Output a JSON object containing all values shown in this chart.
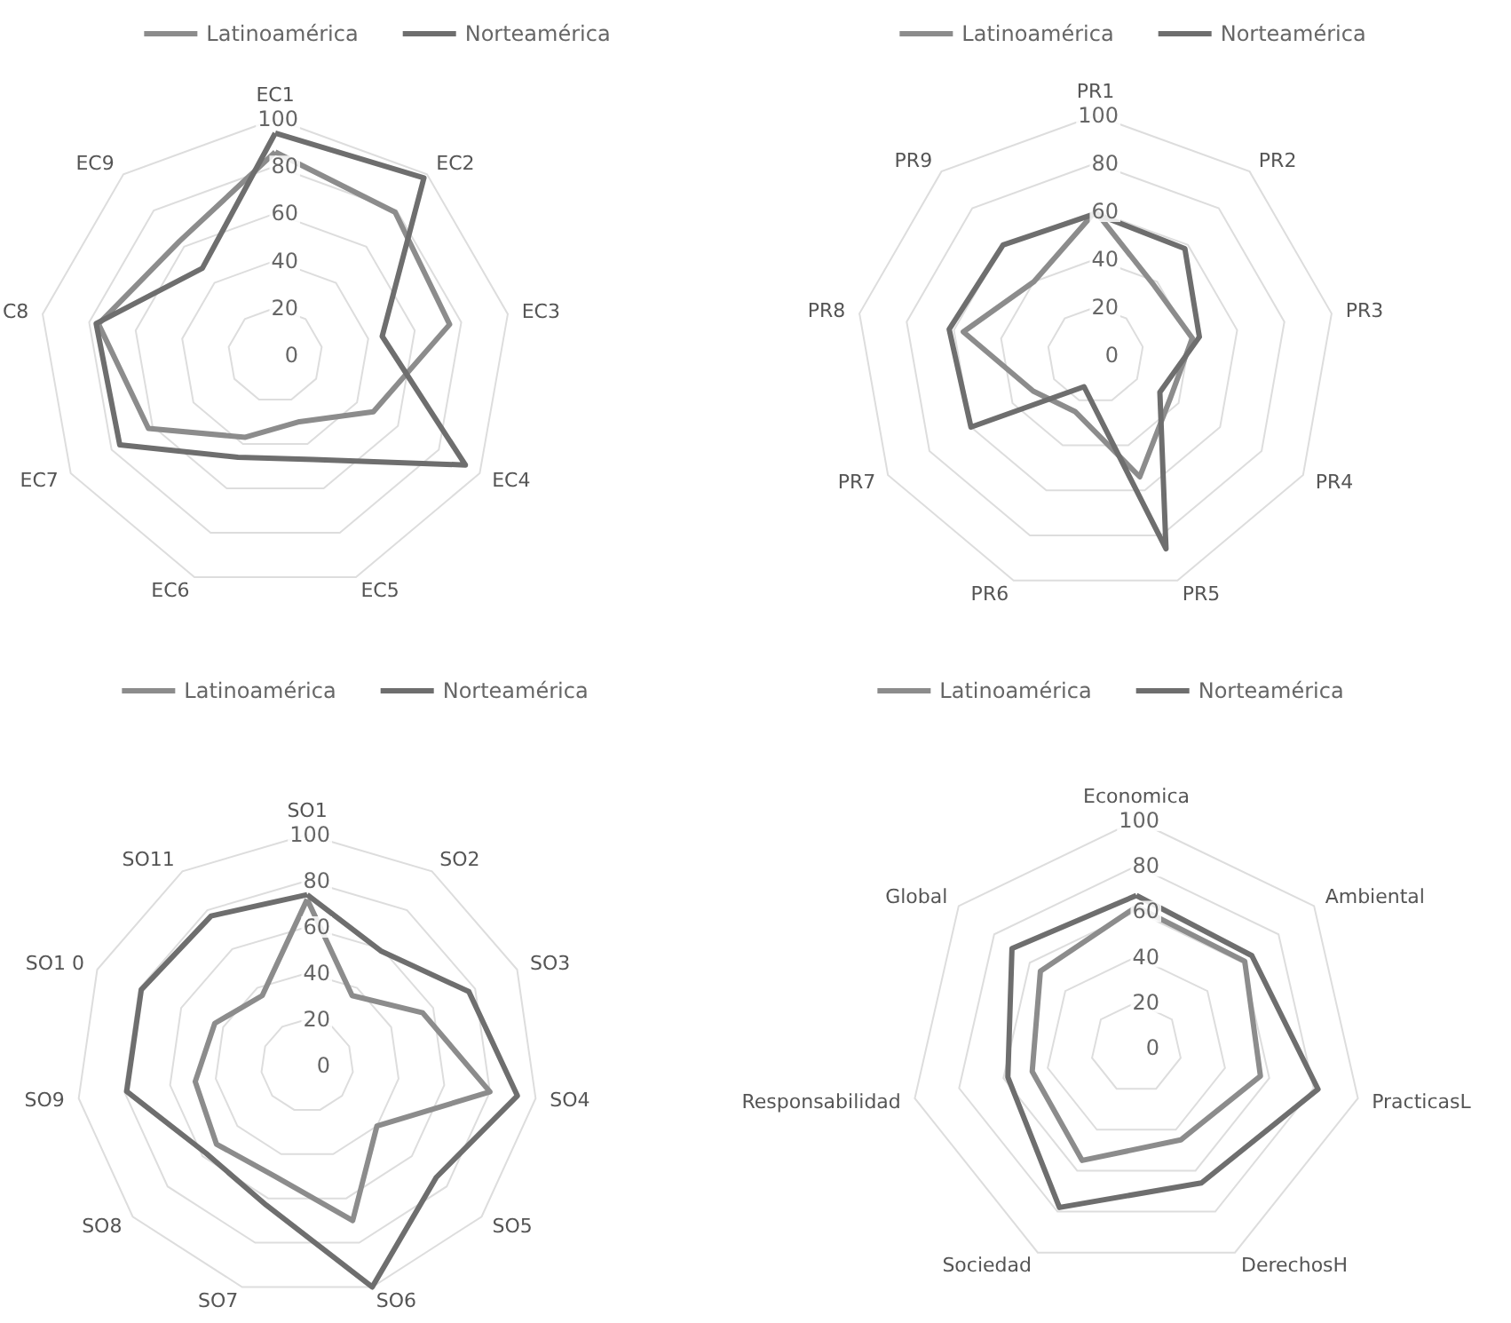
{
  "chart_data": [
    {
      "type": "radar",
      "categories": [
        "EC1",
        "EC2",
        "EC3",
        "EC4",
        "EC5",
        "EC6",
        "EC7",
        "C8",
        "EC9"
      ],
      "ylim": [
        0,
        100
      ],
      "yticks": [
        0,
        20,
        40,
        60,
        80,
        100
      ],
      "grid": true,
      "legend": "top",
      "series": [
        {
          "name": "Latinoamérica",
          "color": "#8c8c8c",
          "values": [
            86,
            79,
            75,
            48,
            30,
            37,
            62,
            76,
            63
          ]
        },
        {
          "name": "Norteamérica",
          "color": "#6e6e6e",
          "values": [
            94,
            98,
            46,
            93,
            47,
            46,
            76,
            77,
            48
          ]
        }
      ]
    },
    {
      "type": "radar",
      "categories": [
        "PR1",
        "PR2",
        "PR3",
        "PR4",
        "PR5",
        "PR6",
        "PR7",
        "PR8",
        "PR9"
      ],
      "ylim": [
        0,
        100
      ],
      "yticks": [
        0,
        20,
        40,
        60,
        80,
        100
      ],
      "grid": true,
      "legend": "top",
      "series": [
        {
          "name": "Latinoamérica",
          "color": "#8c8c8c",
          "values": [
            60,
            38,
            41,
            36,
            54,
            25,
            30,
            56,
            40
          ]
        },
        {
          "name": "Norteamérica",
          "color": "#6e6e6e",
          "values": [
            59,
            58,
            44,
            31,
            86,
            14,
            60,
            62,
            60
          ]
        }
      ]
    },
    {
      "type": "radar",
      "categories": [
        "SO1",
        "SO2",
        "SO3",
        "SO4",
        "SO5",
        "SO6",
        "SO7",
        "SO8",
        "SO9",
        "SO1 0",
        "SO11"
      ],
      "ylim": [
        0,
        100
      ],
      "yticks": [
        0,
        20,
        40,
        60,
        80,
        100
      ],
      "grid": true,
      "legend": "top",
      "series": [
        {
          "name": "Latinoamérica",
          "color": "#8c8c8c",
          "values": [
            72,
            36,
            55,
            80,
            40,
            70,
            50,
            52,
            49,
            44,
            36
          ]
        },
        {
          "name": "Norteamérica",
          "color": "#6e6e6e",
          "values": [
            74,
            59,
            77,
            92,
            74,
            100,
            63,
            58,
            79,
            79,
            77
          ]
        }
      ]
    },
    {
      "type": "radar",
      "categories": [
        "Economica",
        "Ambiental",
        "PracticasL",
        "DerechosH",
        "Sociedad",
        "Responsabilidad",
        "Global"
      ],
      "ylim": [
        0,
        100
      ],
      "yticks": [
        0,
        20,
        40,
        60,
        80,
        100
      ],
      "grid": true,
      "legend": "top",
      "series": [
        {
          "name": "Latinoamérica",
          "color": "#8c8c8c",
          "values": [
            62,
            61,
            56,
            45,
            55,
            47,
            54
          ]
        },
        {
          "name": "Norteamérica",
          "color": "#6e6e6e",
          "values": [
            67,
            65,
            82,
            66,
            78,
            58,
            70
          ]
        }
      ]
    }
  ]
}
